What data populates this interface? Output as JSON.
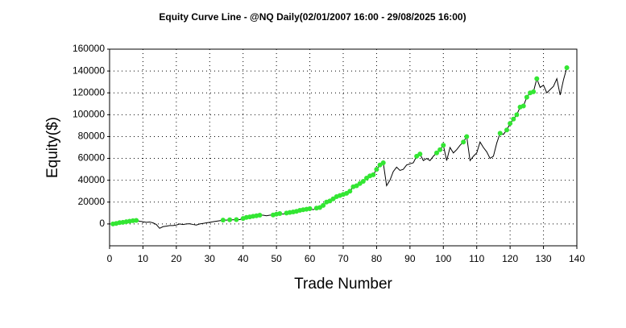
{
  "chart_data": {
    "type": "line",
    "title": "Equity Curve Line - @NQ Daily(02/01/2007 16:00 - 29/08/2025 16:00)",
    "x_label": "Trade Number",
    "y_label": "Equity($)",
    "x": [
      1,
      2,
      3,
      4,
      5,
      6,
      7,
      8,
      9,
      10,
      11,
      12,
      13,
      14,
      15,
      16,
      17,
      18,
      19,
      20,
      21,
      22,
      23,
      24,
      25,
      26,
      27,
      28,
      29,
      30,
      31,
      32,
      33,
      34,
      35,
      36,
      37,
      38,
      39,
      40,
      41,
      42,
      43,
      44,
      45,
      46,
      47,
      48,
      49,
      50,
      51,
      52,
      53,
      54,
      55,
      56,
      57,
      58,
      59,
      60,
      61,
      62,
      63,
      64,
      65,
      66,
      67,
      68,
      69,
      70,
      71,
      72,
      73,
      74,
      75,
      76,
      77,
      78,
      79,
      80,
      81,
      82,
      83,
      84,
      85,
      86,
      87,
      88,
      89,
      90,
      91,
      92,
      93,
      94,
      95,
      96,
      97,
      98,
      99,
      100,
      101,
      102,
      103,
      104,
      105,
      106,
      107,
      108,
      109,
      110,
      111,
      112,
      113,
      114,
      115,
      116,
      117,
      118,
      119,
      120,
      121,
      122,
      123,
      124,
      125,
      126,
      127,
      128,
      129,
      130,
      131,
      132,
      133,
      134,
      135,
      136,
      137
    ],
    "series": [
      {
        "color": "#000000",
        "marker_color": "#33e633",
        "values": [
          0,
          500,
          1200,
          1500,
          2000,
          2500,
          3000,
          3200,
          2500,
          2000,
          1500,
          1800,
          1000,
          -500,
          -4000,
          -2500,
          -2000,
          -1500,
          -1500,
          -1000,
          0,
          -500,
          0,
          200,
          -500,
          -1000,
          0,
          500,
          1000,
          1500,
          2000,
          2500,
          3000,
          3500,
          3500,
          3800,
          3800,
          4000,
          4000,
          5000,
          6000,
          6500,
          7000,
          7500,
          8000,
          8000,
          7500,
          8000,
          8200,
          9000,
          9500,
          9000,
          10000,
          10500,
          11000,
          11500,
          12500,
          13000,
          13500,
          14000,
          13000,
          14500,
          15000,
          17000,
          20000,
          21000,
          23000,
          25000,
          26000,
          27000,
          28000,
          30000,
          34000,
          35000,
          37000,
          39000,
          42000,
          44000,
          45000,
          50000,
          54000,
          56000,
          35000,
          40000,
          48000,
          52000,
          49000,
          50000,
          54000,
          55000,
          56000,
          62000,
          64000,
          58000,
          60000,
          58000,
          62000,
          65000,
          68000,
          72000,
          58000,
          70000,
          65000,
          68000,
          72000,
          75000,
          80000,
          58000,
          62000,
          65000,
          75000,
          70000,
          66000,
          60000,
          62000,
          74000,
          83000,
          82000,
          86000,
          92000,
          96000,
          100000,
          107000,
          108000,
          116000,
          120000,
          121000,
          133000,
          125000,
          127000,
          120000,
          123000,
          126000,
          133000,
          118000,
          132000,
          143000
        ]
      }
    ],
    "xlim": [
      0,
      140
    ],
    "xticks": [
      0,
      10,
      20,
      30,
      40,
      50,
      60,
      70,
      80,
      90,
      100,
      110,
      120,
      130,
      140
    ],
    "ylim": [
      -20000,
      160000
    ],
    "yticks": [
      0,
      20000,
      40000,
      60000,
      80000,
      100000,
      120000,
      140000,
      160000
    ],
    "grid": true
  }
}
